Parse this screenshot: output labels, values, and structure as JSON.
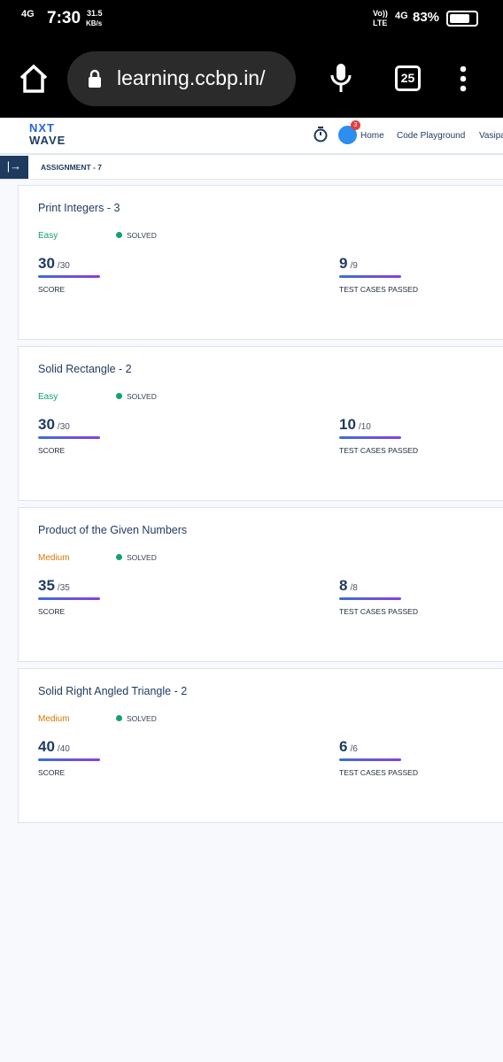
{
  "status_bar": {
    "network": "4G",
    "time": "7:30",
    "speed": "31.5",
    "speed_unit": "KB/s",
    "volte": "Vo))",
    "lte": "LTE",
    "network_right": "4G",
    "battery": "83%"
  },
  "browser": {
    "url": "learning.ccbp.in/",
    "tabs": "25"
  },
  "header": {
    "logo_top": "NXT",
    "logo_bottom": "WAVE",
    "notifications": "3",
    "nav": [
      "Home",
      "Code Playground",
      "Vasipa"
    ]
  },
  "breadcrumb": "ASSIGNMENT - 7",
  "cards": [
    {
      "title": "Print Integers - 3",
      "difficulty": "Easy",
      "status": "SOLVED",
      "score": "30",
      "score_total": "/30",
      "score_label": "SCORE",
      "tests": "9",
      "tests_total": "/9",
      "tests_label": "TEST CASES PASSED"
    },
    {
      "title": "Solid Rectangle - 2",
      "difficulty": "Easy",
      "status": "SOLVED",
      "score": "30",
      "score_total": "/30",
      "score_label": "SCORE",
      "tests": "10",
      "tests_total": "/10",
      "tests_label": "TEST CASES PASSED"
    },
    {
      "title": "Product of the Given Numbers",
      "difficulty": "Medium",
      "status": "SOLVED",
      "score": "35",
      "score_total": "/35",
      "score_label": "SCORE",
      "tests": "8",
      "tests_total": "/8",
      "tests_label": "TEST CASES PASSED"
    },
    {
      "title": "Solid Right Angled Triangle - 2",
      "difficulty": "Medium",
      "status": "SOLVED",
      "score": "40",
      "score_total": "/40",
      "score_label": "SCORE",
      "tests": "6",
      "tests_total": "/6",
      "tests_label": "TEST CASES PASSED"
    }
  ]
}
